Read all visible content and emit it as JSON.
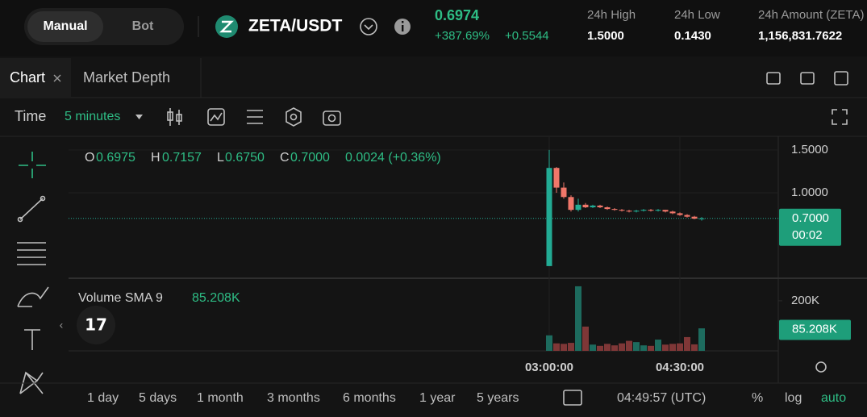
{
  "header": {
    "modes": [
      "Manual",
      "Bot"
    ],
    "pair": "ZETA/USDT",
    "price": "0.6974",
    "change_pct": "+387.69%",
    "change_abs": "+0.5544",
    "stats": [
      {
        "label": "24h High",
        "value": "1.5000"
      },
      {
        "label": "24h Low",
        "value": "0.1430"
      },
      {
        "label": "24h Amount (ZETA)",
        "value": "1,156,831.7622"
      }
    ]
  },
  "tabs": [
    "Chart",
    "Market Depth"
  ],
  "toolbar": {
    "time_label": "Time",
    "interval": "5 minutes"
  },
  "chart": {
    "ohlc_legend": {
      "o_label": "O",
      "open": "0.6975",
      "h_label": "H",
      "high": "0.7157",
      "l_label": "L",
      "low": "0.6750",
      "c_label": "C",
      "close": "0.7000",
      "change": "0.0024 (+0.36%)"
    },
    "up_color": "#22ab94",
    "down_color": "#f0776a",
    "volume_up_color": "#1d6b5e",
    "volume_down_color": "#7f3737",
    "ylim": [
      0.01,
      1.65
    ],
    "yticks": [
      {
        "value": 1.5,
        "label": "1.5000"
      },
      {
        "value": 1,
        "label": "1.0000"
      }
    ],
    "times": [
      "03:00:00",
      null,
      null,
      null,
      null,
      null,
      null,
      null,
      null,
      null,
      null,
      null,
      null,
      null,
      null,
      null,
      null,
      null,
      "04:30:00",
      null,
      null,
      null
    ],
    "candles": [
      {
        "open": 0.143,
        "high": 1.5,
        "low": 0.143,
        "close": 1.29
      },
      {
        "open": 1.29,
        "high": 1.3,
        "low": 1.0,
        "close": 1.06
      },
      {
        "open": 1.06,
        "high": 1.12,
        "low": 0.93,
        "close": 0.95
      },
      {
        "open": 0.95,
        "high": 0.97,
        "low": 0.78,
        "close": 0.8
      },
      {
        "open": 0.8,
        "high": 0.93,
        "low": 0.78,
        "close": 0.86
      },
      {
        "open": 0.86,
        "high": 0.88,
        "low": 0.82,
        "close": 0.83
      },
      {
        "open": 0.83,
        "high": 0.86,
        "low": 0.82,
        "close": 0.85
      },
      {
        "open": 0.85,
        "high": 0.86,
        "low": 0.82,
        "close": 0.83
      },
      {
        "open": 0.83,
        "high": 0.84,
        "low": 0.8,
        "close": 0.81
      },
      {
        "open": 0.81,
        "high": 0.82,
        "low": 0.79,
        "close": 0.8
      },
      {
        "open": 0.8,
        "high": 0.81,
        "low": 0.78,
        "close": 0.79
      },
      {
        "open": 0.79,
        "high": 0.8,
        "low": 0.77,
        "close": 0.78
      },
      {
        "open": 0.78,
        "high": 0.8,
        "low": 0.77,
        "close": 0.79
      },
      {
        "open": 0.79,
        "high": 0.81,
        "low": 0.78,
        "close": 0.8
      },
      {
        "open": 0.8,
        "high": 0.81,
        "low": 0.78,
        "close": 0.79
      },
      {
        "open": 0.79,
        "high": 0.81,
        "low": 0.78,
        "close": 0.8
      },
      {
        "open": 0.8,
        "high": 0.8,
        "low": 0.77,
        "close": 0.78
      },
      {
        "open": 0.78,
        "high": 0.79,
        "low": 0.75,
        "close": 0.76
      },
      {
        "open": 0.76,
        "high": 0.77,
        "low": 0.73,
        "close": 0.74
      },
      {
        "open": 0.74,
        "high": 0.75,
        "low": 0.71,
        "close": 0.72
      },
      {
        "open": 0.72,
        "high": 0.73,
        "low": 0.69,
        "close": 0.6975
      },
      {
        "open": 0.6975,
        "high": 0.7157,
        "low": 0.675,
        "close": 0.7
      }
    ],
    "last_price": {
      "value": 0.7,
      "label": "0.7000"
    },
    "countdown": "00:02",
    "volume_title": "Volume SMA 9",
    "volume_sma": {
      "value": 85208,
      "label": "85.208K"
    },
    "volume_ylim": [
      0,
      290000
    ],
    "volume_yticks": [
      {
        "value": 200000,
        "label": "200K"
      }
    ],
    "volumes": [
      62000,
      30000,
      28000,
      32000,
      258000,
      97000,
      25000,
      20000,
      28000,
      22000,
      30000,
      40000,
      35000,
      22000,
      20000,
      45000,
      25000,
      28000,
      30000,
      55000,
      26000,
      90000
    ]
  },
  "footer": {
    "ranges": [
      "1 day",
      "5 days",
      "1 month",
      "3 months",
      "6 months",
      "1 year",
      "5 years"
    ],
    "clock": "04:49:57 (UTC)",
    "percent": "%",
    "log": "log",
    "auto": "auto"
  }
}
